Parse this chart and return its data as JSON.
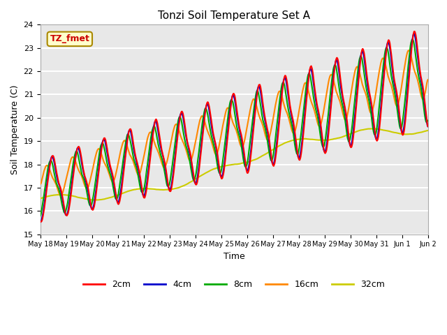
{
  "title": "Tonzi Soil Temperature Set A",
  "xlabel": "Time",
  "ylabel": "Soil Temperature (C)",
  "ylim": [
    15.0,
    24.0
  ],
  "yticks": [
    15.0,
    16.0,
    17.0,
    18.0,
    19.0,
    20.0,
    21.0,
    22.0,
    23.0,
    24.0
  ],
  "annotation_text": "TZ_fmet",
  "annotation_color": "#cc0000",
  "annotation_bg": "#ffffcc",
  "annotation_edge": "#aa8800",
  "colors": {
    "2cm": "#ff0000",
    "4cm": "#0000cc",
    "8cm": "#00aa00",
    "16cm": "#ff8800",
    "32cm": "#cccc00"
  },
  "legend_labels": [
    "2cm",
    "4cm",
    "8cm",
    "16cm",
    "32cm"
  ],
  "bg_color": "#e8e8e8",
  "grid_color": "#ffffff"
}
